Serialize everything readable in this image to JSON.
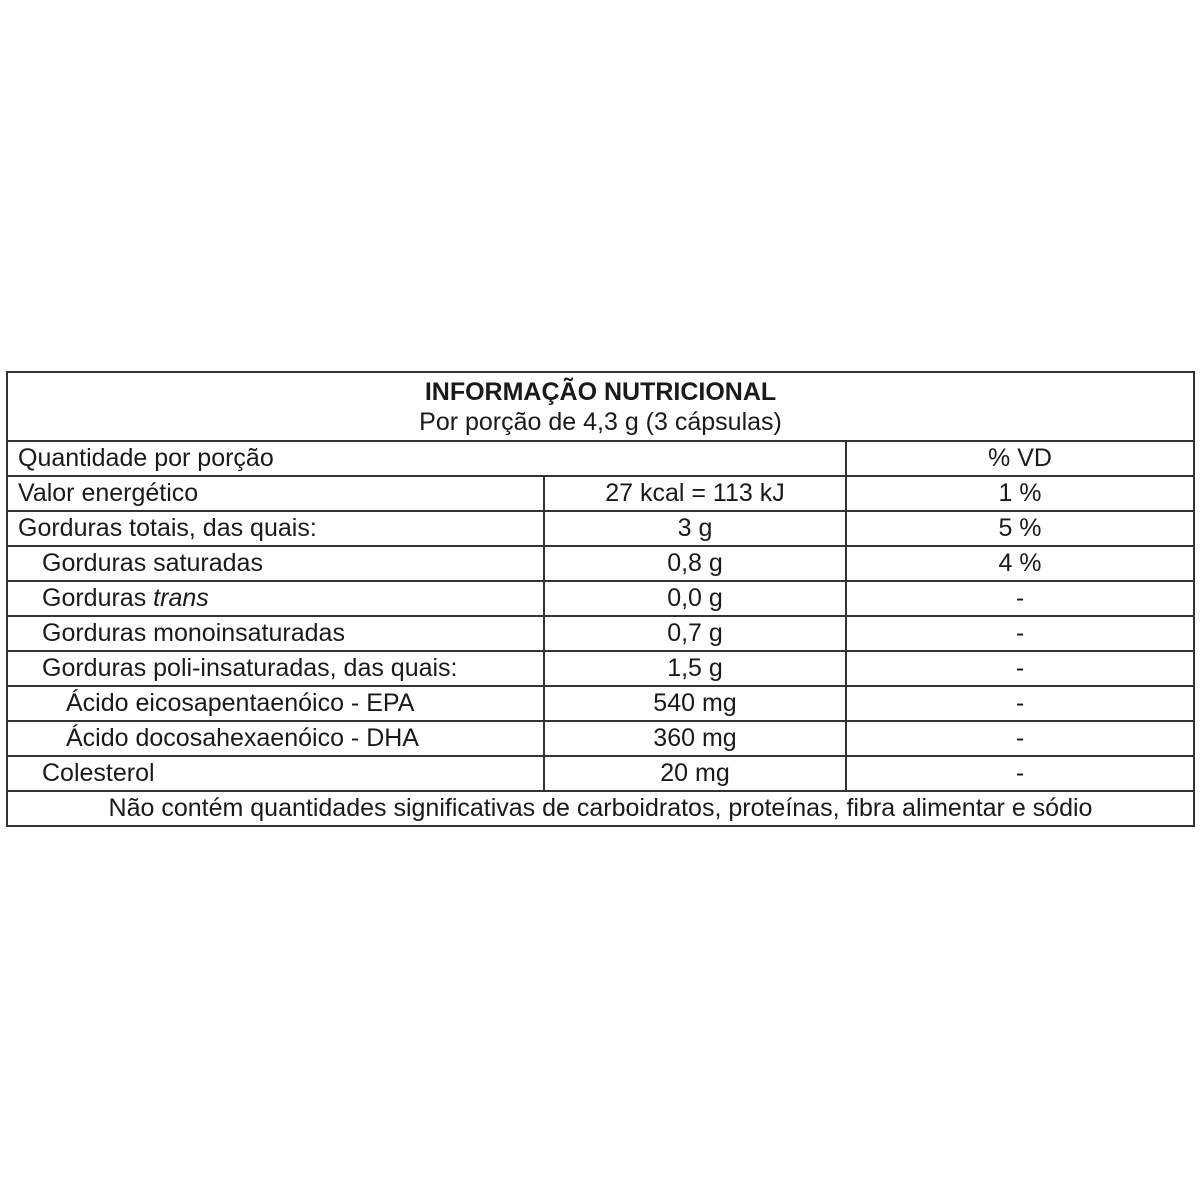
{
  "title": "INFORMAÇÃO NUTRICIONAL",
  "subtitle": "Por porção de 4,3 g (3 cápsulas)",
  "header": {
    "quantity": "Quantidade por porção",
    "vd": "% VD"
  },
  "rows": [
    {
      "label": "Valor energético",
      "amount": "27 kcal = 113 kJ",
      "vd": "1 %"
    },
    {
      "label": "Gorduras totais, das quais:",
      "amount": "3 g",
      "vd": "5 %"
    },
    {
      "label": "Gorduras saturadas",
      "amount": "0,8 g",
      "vd": "4 %"
    },
    {
      "label": "Gorduras ",
      "label_italic": "trans",
      "amount": "0,0 g",
      "vd": "-"
    },
    {
      "label": "Gorduras monoinsaturadas",
      "amount": "0,7 g",
      "vd": "-"
    },
    {
      "label": "Gorduras poli-insaturadas, das quais:",
      "amount": "1,5 g",
      "vd": "-"
    },
    {
      "label": "Ácido eicosapentaenóico - EPA",
      "amount": "540 mg",
      "vd": "-"
    },
    {
      "label": "Ácido docosahexaenóico - DHA",
      "amount": "360 mg",
      "vd": "-"
    },
    {
      "label": "Colesterol",
      "amount": "20 mg",
      "vd": "-"
    }
  ],
  "footnote": "Não contém quantidades significativas de carboidratos, proteínas, fibra alimentar e sódio"
}
